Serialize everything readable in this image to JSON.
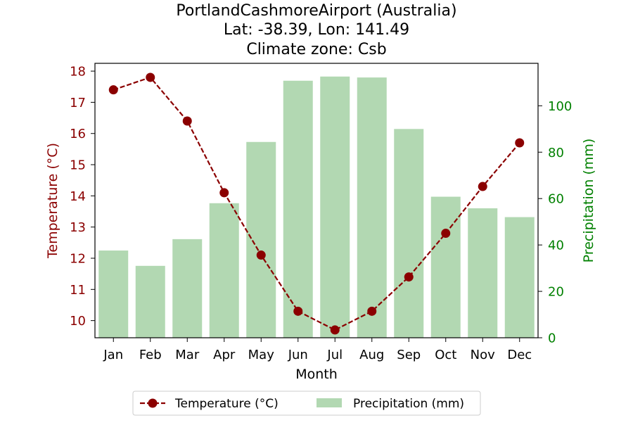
{
  "chart_data": {
    "type": "bar+line",
    "title_lines": [
      "PortlandCashmoreAirport (Australia)",
      "Lat: -38.39, Lon: 141.49",
      "Climate zone: Csb"
    ],
    "xlabel": "Month",
    "ylabel_left": "Temperature (°C)",
    "ylabel_right": "Precipitation (mm)",
    "categories": [
      "Jan",
      "Feb",
      "Mar",
      "Apr",
      "May",
      "Jun",
      "Jul",
      "Aug",
      "Sep",
      "Oct",
      "Nov",
      "Dec"
    ],
    "temperature": {
      "name": "Temperature (°C)",
      "color": "#8b0000",
      "values": [
        17.4,
        17.8,
        16.4,
        14.1,
        12.1,
        10.3,
        9.7,
        10.3,
        11.4,
        12.8,
        14.3,
        15.7
      ],
      "ylim": [
        9.45,
        18.25
      ],
      "ticks": [
        10,
        11,
        12,
        13,
        14,
        15,
        16,
        17,
        18
      ]
    },
    "precipitation": {
      "name": "Precipitation (mm)",
      "color": "#b2d8b2",
      "axis_color": "#008000",
      "values": [
        37.6,
        31.0,
        42.5,
        58.0,
        84.4,
        110.8,
        112.6,
        112.2,
        90.0,
        60.8,
        55.8,
        52.0
      ],
      "ylim": [
        0,
        118.3
      ],
      "ticks": [
        0,
        20,
        40,
        60,
        80,
        100
      ]
    },
    "legend": {
      "position": "bottom-center",
      "temperature_label": "Temperature (°C)",
      "precipitation_label": "Precipitation (mm)"
    },
    "grid": false
  }
}
